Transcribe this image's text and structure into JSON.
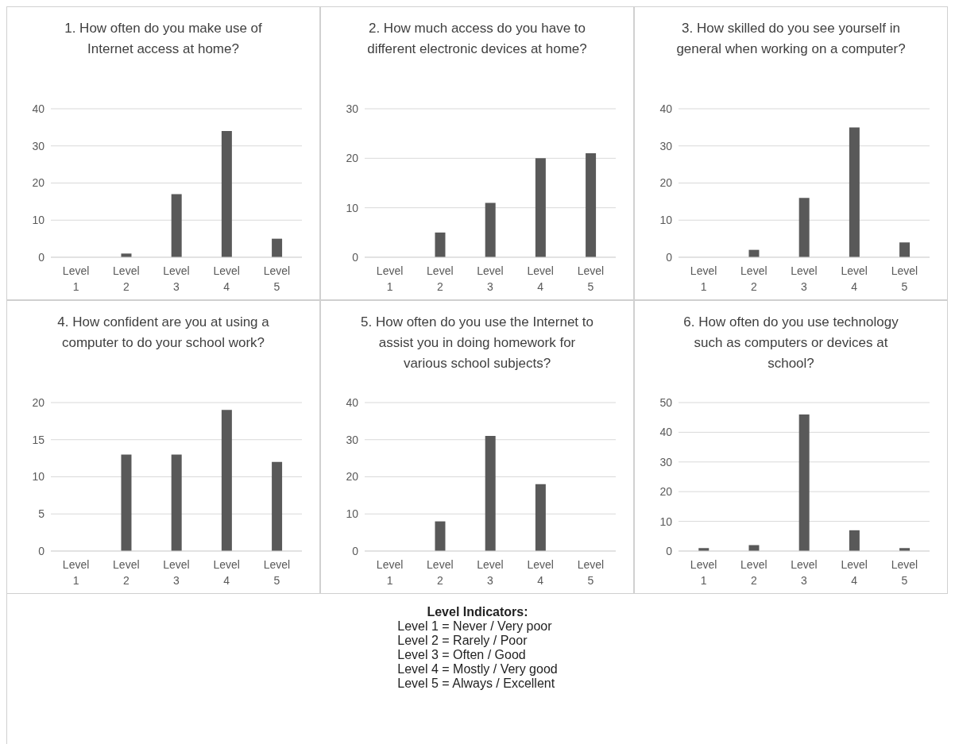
{
  "chart_data": [
    {
      "type": "bar",
      "title": "1. How often do you make use of Internet access at home?",
      "categories": [
        "Level 1",
        "Level 2",
        "Level 3",
        "Level 4",
        "Level 5"
      ],
      "values": [
        0,
        1,
        17,
        34,
        5
      ],
      "color": "#595959",
      "ylim": [
        0,
        40
      ],
      "yticks": [
        0,
        10,
        20,
        30,
        40
      ],
      "grid": "y"
    },
    {
      "type": "bar",
      "title": "2. How much access do you have to different electronic devices at home?",
      "categories": [
        "Level 1",
        "Level 2",
        "Level 3",
        "Level 4",
        "Level 5"
      ],
      "values": [
        0,
        5,
        11,
        20,
        21
      ],
      "color": "#595959",
      "ylim": [
        0,
        30
      ],
      "yticks": [
        0,
        10,
        20,
        30
      ],
      "grid": "y"
    },
    {
      "type": "bar",
      "title": "3. How skilled do you see yourself in general when working on a computer?",
      "categories": [
        "Level 1",
        "Level 2",
        "Level 3",
        "Level 4",
        "Level 5"
      ],
      "values": [
        0,
        2,
        16,
        35,
        4
      ],
      "color": "#595959",
      "ylim": [
        0,
        40
      ],
      "yticks": [
        0,
        10,
        20,
        30,
        40
      ],
      "grid": "y"
    },
    {
      "type": "bar",
      "title": "4. How confident are you at using a computer to do your school work?",
      "categories": [
        "Level 1",
        "Level 2",
        "Level 3",
        "Level 4",
        "Level 5"
      ],
      "values": [
        0,
        13,
        13,
        19,
        12
      ],
      "color": "#595959",
      "ylim": [
        0,
        20
      ],
      "yticks": [
        0,
        5,
        10,
        15,
        20
      ],
      "grid": "y"
    },
    {
      "type": "bar",
      "title": "5. How often do you use the Internet to assist you in doing homework for various school subjects?",
      "categories": [
        "Level 1",
        "Level 2",
        "Level 3",
        "Level 4",
        "Level 5"
      ],
      "values": [
        0,
        8,
        31,
        18,
        0
      ],
      "color": "#595959",
      "ylim": [
        0,
        40
      ],
      "yticks": [
        0,
        10,
        20,
        30,
        40
      ],
      "grid": "y"
    },
    {
      "type": "bar",
      "title": "6. How often do you use technology such as computers or devices at school?",
      "categories": [
        "Level 1",
        "Level 2",
        "Level 3",
        "Level 4",
        "Level 5"
      ],
      "values": [
        1,
        2,
        46,
        7,
        1
      ],
      "color": "#595959",
      "ylim": [
        0,
        50
      ],
      "yticks": [
        0,
        10,
        20,
        30,
        40,
        50
      ],
      "grid": "y"
    },
    {
      "type": "other",
      "title": "Level Indicators:",
      "annotations": [
        "Level 1 = Never / Very poor",
        "Level 2 = Rarely / Poor",
        "Level 3 = Often / Good",
        "Level 4 = Mostly / Very good",
        "Level 5 = Always / Excellent"
      ]
    }
  ]
}
